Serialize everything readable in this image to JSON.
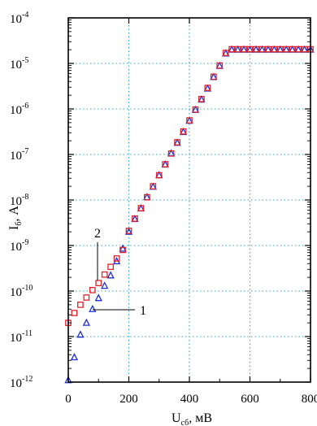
{
  "chart_data": {
    "type": "scatter",
    "xlabel": "U",
    "xlabel_sub": "сб",
    "xlabel_unit": ", мВ",
    "ylabel": "I",
    "ylabel_sub": "б",
    "ylabel_unit": ", A",
    "xlim": [
      0,
      800
    ],
    "ylim": [
      1e-12,
      0.0001
    ],
    "y_scale": "log",
    "grid": true,
    "x_ticks": [
      {
        "value": 0,
        "label": "0"
      },
      {
        "value": 200,
        "label": "200"
      },
      {
        "value": 400,
        "label": "400"
      },
      {
        "value": 600,
        "label": "600"
      },
      {
        "value": 800,
        "label": "800"
      }
    ],
    "y_ticks": [
      {
        "value": 1e-12,
        "base": "10",
        "exp": "-12"
      },
      {
        "value": 1e-11,
        "base": "10",
        "exp": "-11"
      },
      {
        "value": 1e-10,
        "base": "10",
        "exp": "-10"
      },
      {
        "value": 1e-09,
        "base": "10",
        "exp": "-9"
      },
      {
        "value": 1e-08,
        "base": "10",
        "exp": "-8"
      },
      {
        "value": 1e-07,
        "base": "10",
        "exp": "-7"
      },
      {
        "value": 1e-06,
        "base": "10",
        "exp": "-6"
      },
      {
        "value": 1e-05,
        "base": "10",
        "exp": "-5"
      },
      {
        "value": 0.0001,
        "base": "10",
        "exp": "-4"
      }
    ],
    "annotations": [
      "1",
      "2"
    ],
    "series": [
      {
        "name": "1",
        "marker": "triangle",
        "color": "#1f2fd0",
        "x": [
          0,
          20,
          40,
          60,
          80,
          100,
          120,
          140,
          160,
          180,
          200,
          220,
          240,
          260,
          280,
          300,
          320,
          340,
          360,
          380,
          400,
          420,
          440,
          460,
          480,
          500,
          520,
          540,
          560,
          580,
          600,
          620,
          640,
          660,
          680,
          700,
          720,
          740,
          760,
          780,
          800
        ],
        "y": [
          1.1e-12,
          3.5e-12,
          1.1e-11,
          2e-11,
          4e-11,
          7e-11,
          1.3e-10,
          2.2e-10,
          4.5e-10,
          8.5e-10,
          2e-09,
          3.8e-09,
          6.5e-09,
          1.15e-08,
          1.95e-08,
          3.5e-08,
          6e-08,
          1.05e-07,
          1.8e-07,
          3.1e-07,
          5.5e-07,
          9.5e-07,
          1.6e-06,
          2.8e-06,
          5e-06,
          8.8e-06,
          1.65e-05,
          2e-05,
          2e-05,
          2e-05,
          2e-05,
          2e-05,
          2e-05,
          2e-05,
          2e-05,
          2e-05,
          2e-05,
          2e-05,
          2e-05,
          2e-05,
          2e-05
        ]
      },
      {
        "name": "2",
        "marker": "square",
        "color": "#e0202a",
        "x": [
          0,
          20,
          40,
          60,
          80,
          100,
          120,
          140,
          160,
          180,
          200,
          220,
          240,
          260,
          280,
          300,
          320,
          340,
          360,
          380,
          400,
          420,
          440,
          460,
          480,
          500,
          520,
          540,
          560,
          580,
          600,
          620,
          640,
          660,
          680,
          700,
          720,
          740,
          760,
          780,
          800
        ],
        "y": [
          2e-11,
          3.3e-11,
          5e-11,
          7.2e-11,
          1.05e-10,
          1.5e-10,
          2.3e-10,
          3.4e-10,
          5.2e-10,
          8e-10,
          2.1e-09,
          3.9e-09,
          6.6e-09,
          1.15e-08,
          2e-08,
          3.5e-08,
          6.1e-08,
          1.05e-07,
          1.85e-07,
          3.2e-07,
          5.6e-07,
          9.7e-07,
          1.65e-06,
          2.9e-06,
          5.1e-06,
          9e-06,
          1.7e-05,
          2.05e-05,
          2.05e-05,
          2.05e-05,
          2.05e-05,
          2.05e-05,
          2.05e-05,
          2.05e-05,
          2.05e-05,
          2.05e-05,
          2.05e-05,
          2.05e-05,
          2.05e-05,
          2.05e-05,
          2.05e-05
        ]
      }
    ]
  }
}
